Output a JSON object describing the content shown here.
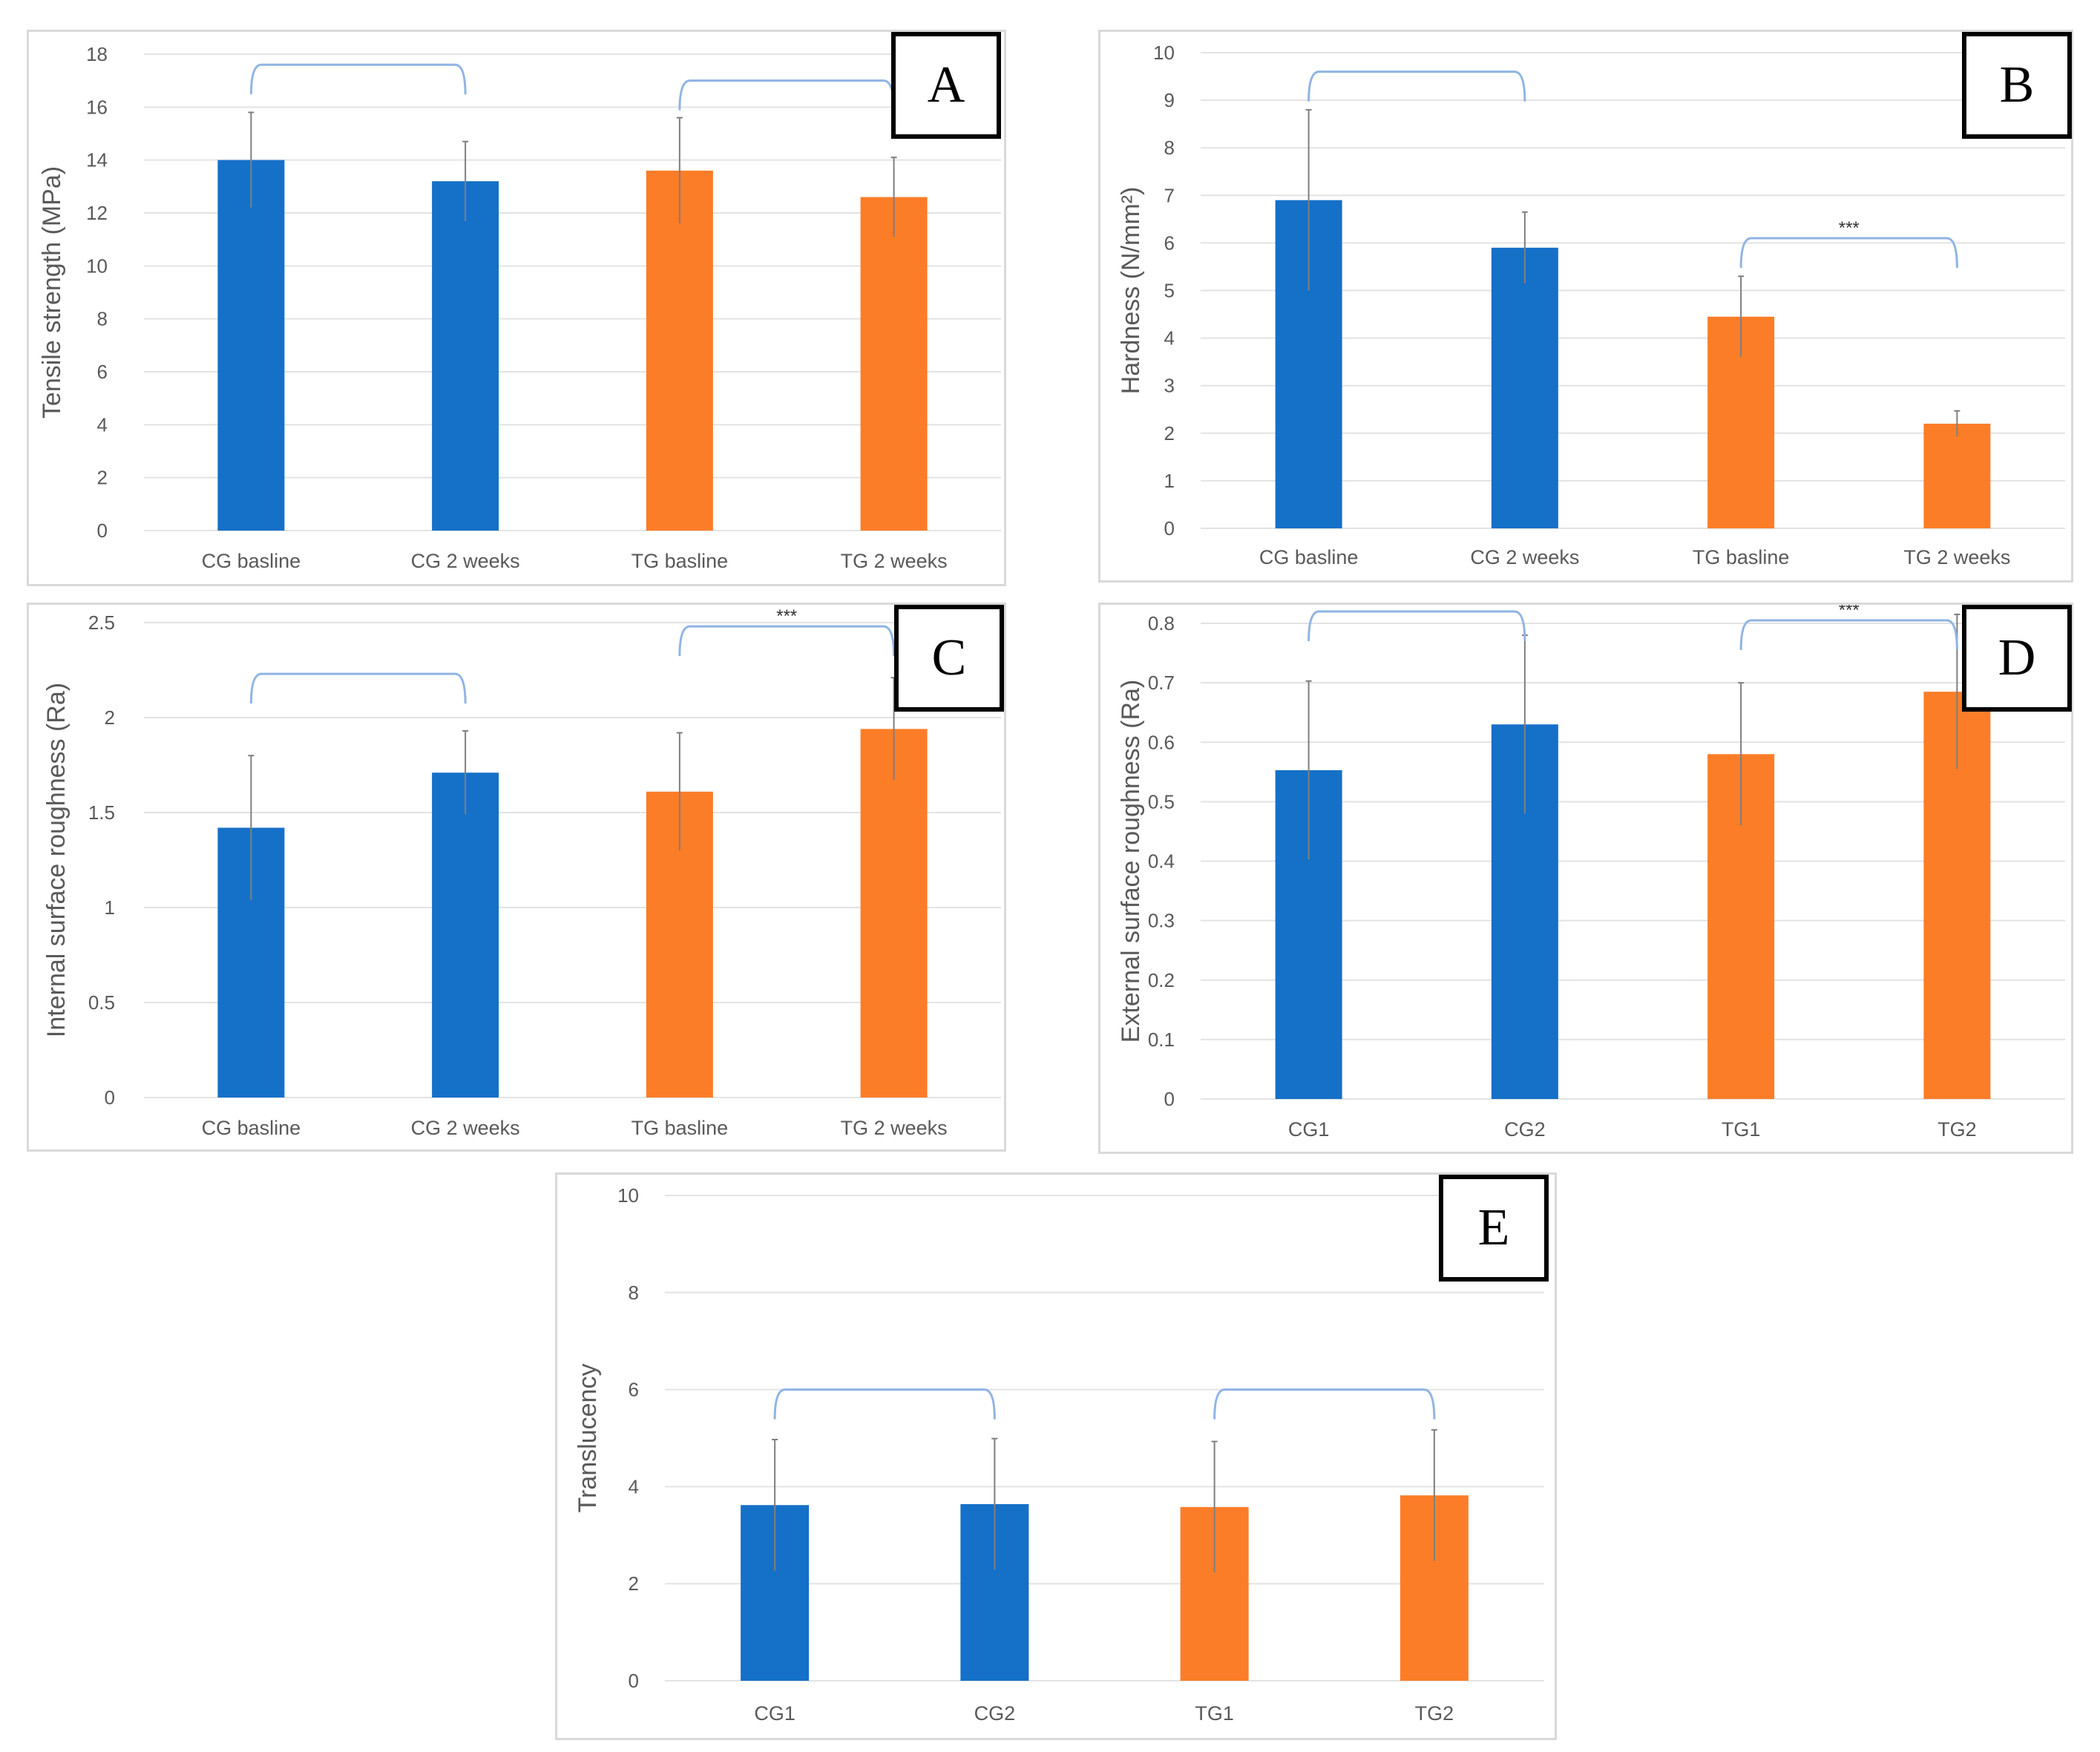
{
  "colors": {
    "control": "#1570c8",
    "test": "#fc7d28",
    "grid": "#e3e3e3",
    "axis_text": "#595959",
    "bracket": "#8fb4e3",
    "error": "#7f7f7f"
  },
  "chart_data": [
    {
      "id": "A",
      "panel_label": "A",
      "type": "bar",
      "title": "",
      "ylabel": "Tensile strength (MPa)",
      "ylim": [
        0,
        18
      ],
      "yticks": [
        "0",
        "2",
        "4",
        "6",
        "8",
        "10",
        "12",
        "14",
        "16",
        "18"
      ],
      "categories": [
        "CG basline",
        "CG 2 weeks",
        "TG basline",
        "TG 2 weeks"
      ],
      "values": [
        14.0,
        13.2,
        13.6,
        12.6
      ],
      "errors": [
        1.8,
        1.5,
        2.0,
        1.5
      ],
      "groups": [
        "control",
        "control",
        "test",
        "test"
      ],
      "brackets": [
        {
          "from": 0,
          "to": 1,
          "level": 17.6,
          "label": ""
        },
        {
          "from": 2,
          "to": 3,
          "level": 17.0,
          "label": ""
        }
      ]
    },
    {
      "id": "B",
      "panel_label": "B",
      "type": "bar",
      "title": "",
      "ylabel": "Hardness (N/mm²)",
      "ylim": [
        0,
        10
      ],
      "yticks": [
        "0",
        "1",
        "2",
        "3",
        "4",
        "5",
        "6",
        "7",
        "8",
        "9",
        "10"
      ],
      "categories": [
        "CG basline",
        "CG 2 weeks",
        "TG basline",
        "TG 2 weeks"
      ],
      "values": [
        6.9,
        5.9,
        4.45,
        2.2
      ],
      "errors": [
        1.9,
        0.75,
        0.85,
        0.27
      ],
      "groups": [
        "control",
        "control",
        "test",
        "test"
      ],
      "brackets": [
        {
          "from": 0,
          "to": 1,
          "level": 9.6,
          "label": ""
        },
        {
          "from": 2,
          "to": 3,
          "level": 6.1,
          "label": "***"
        }
      ]
    },
    {
      "id": "C",
      "panel_label": "C",
      "type": "bar",
      "title": "",
      "ylabel": "Internal surface roughness (Ra)",
      "ylim": [
        0,
        2.5
      ],
      "yticks": [
        "0",
        "0.5",
        "1",
        "1.5",
        "2",
        "2.5"
      ],
      "categories": [
        "CG basline",
        "CG 2 weeks",
        "TG basline",
        "TG 2 weeks"
      ],
      "values": [
        1.42,
        1.71,
        1.61,
        1.94
      ],
      "errors": [
        0.38,
        0.22,
        0.31,
        0.27
      ],
      "groups": [
        "control",
        "control",
        "test",
        "test"
      ],
      "brackets": [
        {
          "from": 0,
          "to": 1,
          "level": 2.23,
          "label": ""
        },
        {
          "from": 2,
          "to": 3,
          "level": 2.48,
          "label": "***"
        }
      ]
    },
    {
      "id": "D",
      "panel_label": "D",
      "type": "bar",
      "title": "",
      "ylabel": "External surface roughness (Ra)",
      "ylim": [
        0,
        0.8
      ],
      "yticks": [
        "0",
        "0.1",
        "0.2",
        "0.3",
        "0.4",
        "0.5",
        "0.6",
        "0.7",
        "0.8"
      ],
      "categories": [
        "CG1",
        "CG2",
        "TG1",
        "TG2"
      ],
      "values": [
        0.553,
        0.63,
        0.58,
        0.685
      ],
      "errors": [
        0.15,
        0.15,
        0.12,
        0.13
      ],
      "groups": [
        "control",
        "control",
        "test",
        "test"
      ],
      "brackets": [
        {
          "from": 0,
          "to": 1,
          "level": 0.82,
          "label": ""
        },
        {
          "from": 2,
          "to": 3,
          "level": 0.805,
          "label": "***"
        }
      ]
    },
    {
      "id": "E",
      "panel_label": "E",
      "type": "bar",
      "title": "",
      "ylabel": "Translucency",
      "ylim": [
        0,
        10
      ],
      "yticks": [
        "0",
        "2",
        "4",
        "6",
        "8",
        "10"
      ],
      "categories": [
        "CG1",
        "CG2",
        "TG1",
        "TG2"
      ],
      "values": [
        3.62,
        3.64,
        3.58,
        3.82
      ],
      "errors": [
        1.35,
        1.35,
        1.35,
        1.35
      ],
      "groups": [
        "control",
        "control",
        "test",
        "test"
      ],
      "brackets": [
        {
          "from": 0,
          "to": 1,
          "level": 6.0,
          "label": ""
        },
        {
          "from": 2,
          "to": 3,
          "level": 6.0,
          "label": ""
        }
      ]
    }
  ]
}
